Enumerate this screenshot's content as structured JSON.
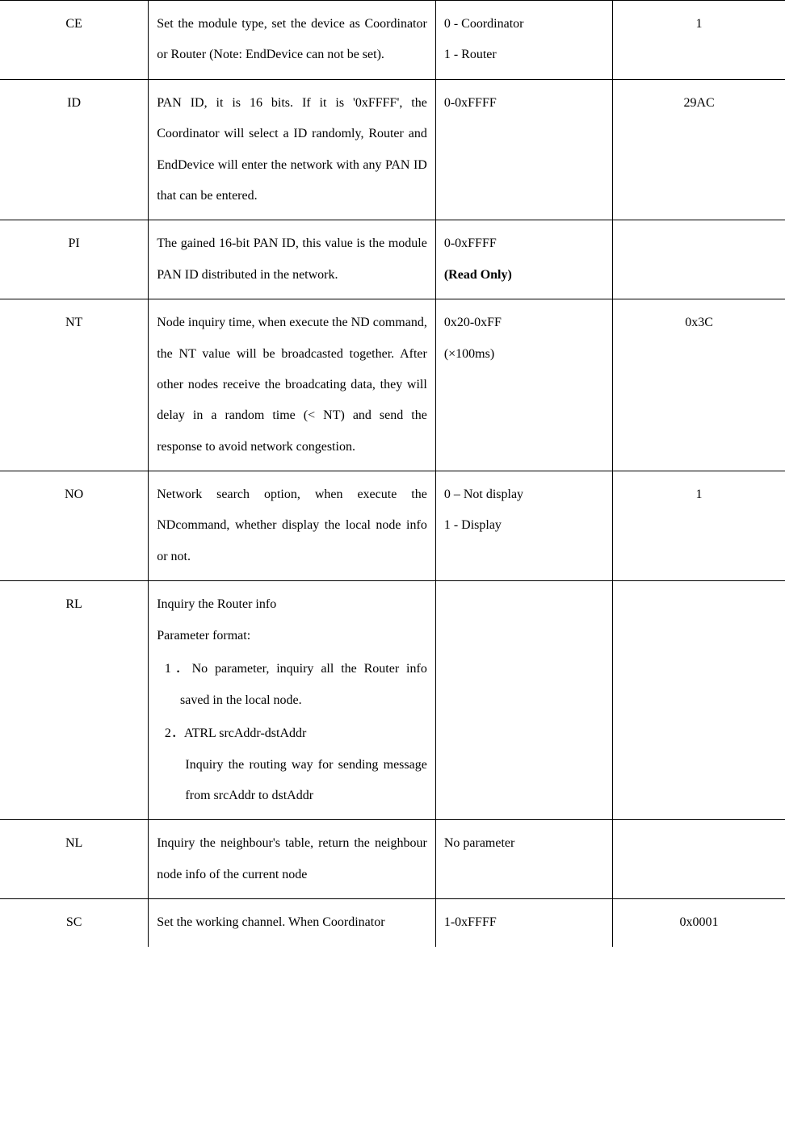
{
  "rows": [
    {
      "cmd": "CE",
      "desc_lines": [
        "Set the module type, set the device as Coordinator or Router (Note: EndDevice can not be set)."
      ],
      "range_lines": [
        "0 - Coordinator",
        "1 - Router"
      ],
      "default": "1"
    },
    {
      "cmd": "ID",
      "desc_lines": [
        "PAN ID, it is 16 bits. If it is '0xFFFF', the Coordinator will select a ID randomly, Router and EndDevice will enter the network with any PAN ID that can be entered."
      ],
      "range_lines": [
        "0-0xFFFF"
      ],
      "default": "29AC"
    },
    {
      "cmd": "PI",
      "desc_lines": [
        "The gained 16-bit PAN ID, this value is the module PAN ID distributed in the network."
      ],
      "range_lines": [
        "0-0xFFFF",
        "(Read Only)"
      ],
      "range_bold_index": 1,
      "default": ""
    },
    {
      "cmd": "NT",
      "desc_lines": [
        "Node inquiry time, when execute the ND command, the NT value will be broadcasted together. After other nodes receive the broadcating data, they will delay in a random time (< NT) and send the response to avoid network congestion."
      ],
      "range_lines": [
        "0x20-0xFF",
        "(×100ms)"
      ],
      "default": "0x3C"
    },
    {
      "cmd": "NO",
      "desc_lines": [
        "Network search option, when execute the NDcommand, whether display the local node info or not."
      ],
      "range_lines": [
        "0 – Not display",
        "1 - Display"
      ],
      "default": "1"
    },
    {
      "cmd": "RL",
      "desc_type": "rl",
      "rl_header": "Inquiry the Router info",
      "rl_param_label": "Parameter format:",
      "rl_items": [
        {
          "num": "1．",
          "text": "No parameter, inquiry all the Router info saved in the local node."
        },
        {
          "num": "2．",
          "text": "ATRL srcAddr-dstAddr",
          "sub": "Inquiry the routing way for sending message from srcAddr to dstAddr"
        }
      ],
      "range_lines": [],
      "default": ""
    },
    {
      "cmd": "NL",
      "desc_lines": [
        "Inquiry the neighbour's table, return the neighbour node info of the current node"
      ],
      "range_lines": [
        "No parameter"
      ],
      "default": ""
    },
    {
      "cmd": "SC",
      "desc_lines": [
        "Set the working channel. When Coordinator"
      ],
      "range_lines": [
        "1-0xFFFF"
      ],
      "default": "0x0001"
    }
  ]
}
